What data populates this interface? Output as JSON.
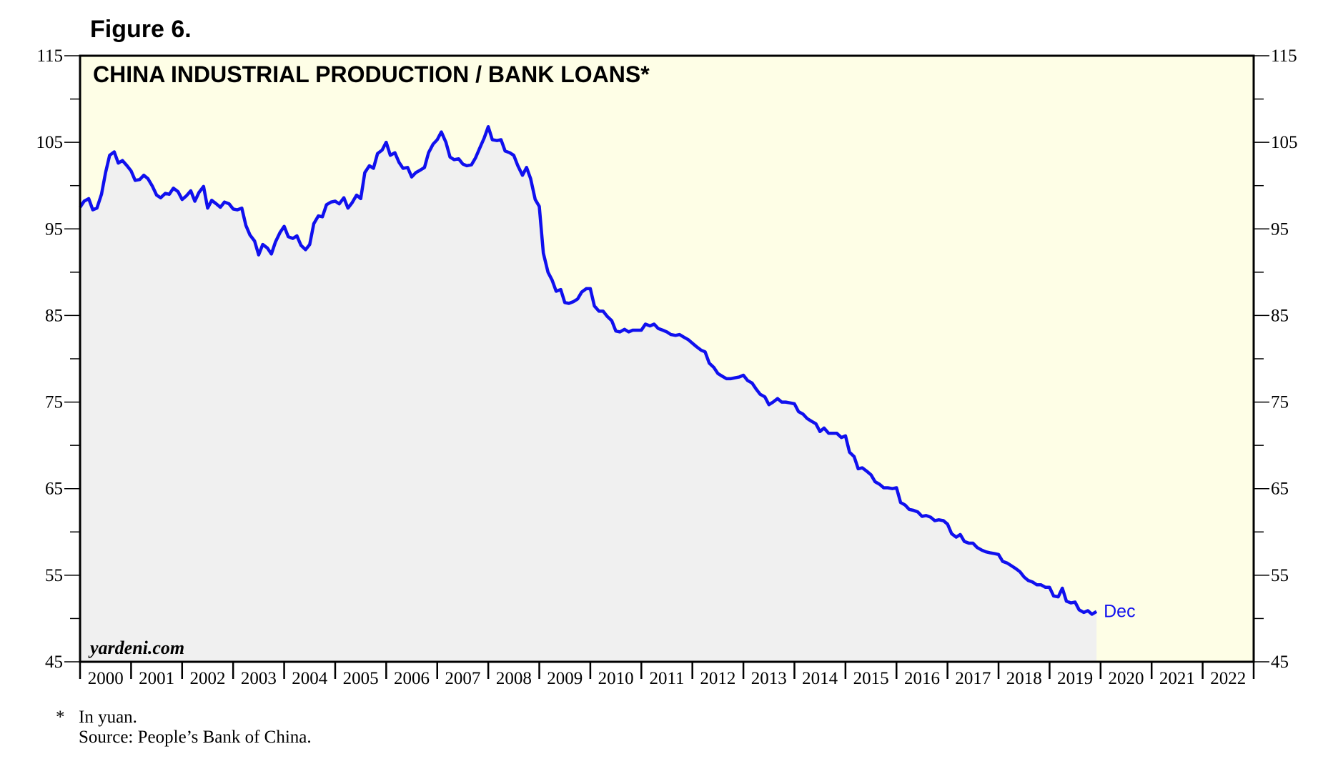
{
  "figure_label": "Figure 6.",
  "footnote": {
    "marker": "*",
    "note": "In yuan.",
    "source": "Source: People’s Bank of China."
  },
  "watermark": "yardeni.com",
  "colors": {
    "plot_bg": "#fefee6",
    "area_fill": "#f0f0f0",
    "line": "#1010ee",
    "axis": "#000000"
  },
  "chart_data": {
    "type": "line",
    "title": "CHINA INDUSTRIAL PRODUCTION / BANK LOANS*",
    "xlabel": "",
    "ylabel": "",
    "ylim": [
      45,
      115
    ],
    "y_ticks": [
      45,
      55,
      65,
      75,
      85,
      95,
      105,
      115
    ],
    "x_categories": [
      "2000",
      "2001",
      "2002",
      "2003",
      "2004",
      "2005",
      "2006",
      "2007",
      "2008",
      "2009",
      "2010",
      "2011",
      "2012",
      "2013",
      "2014",
      "2015",
      "2016",
      "2017",
      "2018",
      "2019",
      "2020",
      "2021",
      "2022"
    ],
    "xlim": [
      2000,
      2023
    ],
    "grid": false,
    "end_label": "Dec",
    "series": [
      {
        "values": [
          [
            2000.0,
            97.5
          ],
          [
            2000.08,
            98.2
          ],
          [
            2000.17,
            98.5
          ],
          [
            2000.25,
            97.2
          ],
          [
            2000.33,
            97.4
          ],
          [
            2000.42,
            99.0
          ],
          [
            2000.5,
            101.5
          ],
          [
            2000.58,
            103.5
          ],
          [
            2000.67,
            103.9
          ],
          [
            2000.75,
            102.6
          ],
          [
            2000.83,
            102.9
          ],
          [
            2000.92,
            102.3
          ],
          [
            2001.0,
            101.7
          ],
          [
            2001.08,
            100.6
          ],
          [
            2001.17,
            100.7
          ],
          [
            2001.25,
            101.2
          ],
          [
            2001.33,
            100.8
          ],
          [
            2001.42,
            99.9
          ],
          [
            2001.5,
            98.9
          ],
          [
            2001.58,
            98.6
          ],
          [
            2001.67,
            99.1
          ],
          [
            2001.75,
            99.0
          ],
          [
            2001.83,
            99.7
          ],
          [
            2001.92,
            99.3
          ],
          [
            2002.0,
            98.4
          ],
          [
            2002.08,
            98.8
          ],
          [
            2002.17,
            99.4
          ],
          [
            2002.25,
            98.2
          ],
          [
            2002.33,
            99.2
          ],
          [
            2002.42,
            99.9
          ],
          [
            2002.5,
            97.4
          ],
          [
            2002.58,
            98.3
          ],
          [
            2002.67,
            97.9
          ],
          [
            2002.75,
            97.5
          ],
          [
            2002.83,
            98.1
          ],
          [
            2002.92,
            97.9
          ],
          [
            2003.0,
            97.3
          ],
          [
            2003.08,
            97.2
          ],
          [
            2003.17,
            97.4
          ],
          [
            2003.25,
            95.4
          ],
          [
            2003.33,
            94.3
          ],
          [
            2003.42,
            93.6
          ],
          [
            2003.5,
            92.0
          ],
          [
            2003.58,
            93.2
          ],
          [
            2003.67,
            92.8
          ],
          [
            2003.75,
            92.1
          ],
          [
            2003.83,
            93.5
          ],
          [
            2003.92,
            94.6
          ],
          [
            2004.0,
            95.3
          ],
          [
            2004.08,
            94.1
          ],
          [
            2004.17,
            93.9
          ],
          [
            2004.25,
            94.2
          ],
          [
            2004.33,
            93.1
          ],
          [
            2004.42,
            92.6
          ],
          [
            2004.5,
            93.2
          ],
          [
            2004.58,
            95.6
          ],
          [
            2004.67,
            96.5
          ],
          [
            2004.75,
            96.4
          ],
          [
            2004.83,
            97.8
          ],
          [
            2004.92,
            98.1
          ],
          [
            2005.0,
            98.2
          ],
          [
            2005.08,
            97.9
          ],
          [
            2005.17,
            98.6
          ],
          [
            2005.25,
            97.4
          ],
          [
            2005.33,
            98.0
          ],
          [
            2005.42,
            98.9
          ],
          [
            2005.5,
            98.5
          ],
          [
            2005.58,
            101.5
          ],
          [
            2005.67,
            102.3
          ],
          [
            2005.75,
            102.0
          ],
          [
            2005.83,
            103.7
          ],
          [
            2005.92,
            104.1
          ],
          [
            2006.0,
            105.0
          ],
          [
            2006.08,
            103.5
          ],
          [
            2006.17,
            103.8
          ],
          [
            2006.25,
            102.7
          ],
          [
            2006.33,
            102.0
          ],
          [
            2006.42,
            102.1
          ],
          [
            2006.5,
            101.0
          ],
          [
            2006.58,
            101.5
          ],
          [
            2006.67,
            101.8
          ],
          [
            2006.75,
            102.1
          ],
          [
            2006.83,
            103.8
          ],
          [
            2006.92,
            104.8
          ],
          [
            2007.0,
            105.3
          ],
          [
            2007.08,
            106.2
          ],
          [
            2007.17,
            105.0
          ],
          [
            2007.25,
            103.3
          ],
          [
            2007.33,
            103.0
          ],
          [
            2007.42,
            103.1
          ],
          [
            2007.5,
            102.5
          ],
          [
            2007.58,
            102.3
          ],
          [
            2007.67,
            102.4
          ],
          [
            2007.75,
            103.2
          ],
          [
            2007.83,
            104.3
          ],
          [
            2007.92,
            105.5
          ],
          [
            2008.0,
            106.8
          ],
          [
            2008.08,
            105.3
          ],
          [
            2008.17,
            105.2
          ],
          [
            2008.25,
            105.3
          ],
          [
            2008.33,
            104.0
          ],
          [
            2008.42,
            103.8
          ],
          [
            2008.5,
            103.5
          ],
          [
            2008.58,
            102.3
          ],
          [
            2008.67,
            101.2
          ],
          [
            2008.75,
            102.1
          ],
          [
            2008.83,
            100.8
          ],
          [
            2008.92,
            98.4
          ],
          [
            2009.0,
            97.6
          ],
          [
            2009.08,
            92.2
          ],
          [
            2009.17,
            90.0
          ],
          [
            2009.25,
            89.1
          ],
          [
            2009.33,
            87.8
          ],
          [
            2009.42,
            88.0
          ],
          [
            2009.5,
            86.5
          ],
          [
            2009.58,
            86.4
          ],
          [
            2009.67,
            86.6
          ],
          [
            2009.75,
            86.9
          ],
          [
            2009.83,
            87.7
          ],
          [
            2009.92,
            88.1
          ],
          [
            2010.0,
            88.1
          ],
          [
            2010.08,
            86.1
          ],
          [
            2010.17,
            85.5
          ],
          [
            2010.25,
            85.5
          ],
          [
            2010.33,
            84.9
          ],
          [
            2010.42,
            84.4
          ],
          [
            2010.5,
            83.2
          ],
          [
            2010.58,
            83.1
          ],
          [
            2010.67,
            83.4
          ],
          [
            2010.75,
            83.1
          ],
          [
            2010.83,
            83.3
          ],
          [
            2010.92,
            83.3
          ],
          [
            2011.0,
            83.3
          ],
          [
            2011.08,
            84.0
          ],
          [
            2011.17,
            83.8
          ],
          [
            2011.25,
            84.0
          ],
          [
            2011.33,
            83.5
          ],
          [
            2011.42,
            83.3
          ],
          [
            2011.5,
            83.1
          ],
          [
            2011.58,
            82.8
          ],
          [
            2011.67,
            82.7
          ],
          [
            2011.75,
            82.8
          ],
          [
            2011.83,
            82.5
          ],
          [
            2011.92,
            82.2
          ],
          [
            2012.0,
            81.8
          ],
          [
            2012.08,
            81.4
          ],
          [
            2012.17,
            81.0
          ],
          [
            2012.25,
            80.8
          ],
          [
            2012.33,
            79.5
          ],
          [
            2012.42,
            79.0
          ],
          [
            2012.5,
            78.3
          ],
          [
            2012.58,
            78.0
          ],
          [
            2012.67,
            77.7
          ],
          [
            2012.75,
            77.7
          ],
          [
            2012.83,
            77.8
          ],
          [
            2012.92,
            77.9
          ],
          [
            2013.0,
            78.1
          ],
          [
            2013.08,
            77.5
          ],
          [
            2013.17,
            77.2
          ],
          [
            2013.25,
            76.5
          ],
          [
            2013.33,
            75.9
          ],
          [
            2013.42,
            75.6
          ],
          [
            2013.5,
            74.7
          ],
          [
            2013.58,
            75.0
          ],
          [
            2013.67,
            75.4
          ],
          [
            2013.75,
            75.0
          ],
          [
            2013.83,
            75.0
          ],
          [
            2013.92,
            74.9
          ],
          [
            2014.0,
            74.8
          ],
          [
            2014.08,
            73.9
          ],
          [
            2014.17,
            73.6
          ],
          [
            2014.25,
            73.1
          ],
          [
            2014.33,
            72.8
          ],
          [
            2014.42,
            72.5
          ],
          [
            2014.5,
            71.6
          ],
          [
            2014.58,
            72.0
          ],
          [
            2014.67,
            71.4
          ],
          [
            2014.75,
            71.4
          ],
          [
            2014.83,
            71.4
          ],
          [
            2014.92,
            70.9
          ],
          [
            2015.0,
            71.1
          ],
          [
            2015.08,
            69.2
          ],
          [
            2015.17,
            68.7
          ],
          [
            2015.25,
            67.3
          ],
          [
            2015.33,
            67.4
          ],
          [
            2015.42,
            67.0
          ],
          [
            2015.5,
            66.6
          ],
          [
            2015.58,
            65.8
          ],
          [
            2015.67,
            65.5
          ],
          [
            2015.75,
            65.1
          ],
          [
            2015.83,
            65.1
          ],
          [
            2015.92,
            65.0
          ],
          [
            2016.0,
            65.1
          ],
          [
            2016.08,
            63.4
          ],
          [
            2016.17,
            63.1
          ],
          [
            2016.25,
            62.6
          ],
          [
            2016.33,
            62.5
          ],
          [
            2016.42,
            62.3
          ],
          [
            2016.5,
            61.8
          ],
          [
            2016.58,
            61.9
          ],
          [
            2016.67,
            61.7
          ],
          [
            2016.75,
            61.3
          ],
          [
            2016.83,
            61.4
          ],
          [
            2016.92,
            61.3
          ],
          [
            2017.0,
            60.9
          ],
          [
            2017.08,
            59.8
          ],
          [
            2017.17,
            59.4
          ],
          [
            2017.25,
            59.7
          ],
          [
            2017.33,
            58.9
          ],
          [
            2017.42,
            58.7
          ],
          [
            2017.5,
            58.7
          ],
          [
            2017.58,
            58.2
          ],
          [
            2017.67,
            57.9
          ],
          [
            2017.75,
            57.7
          ],
          [
            2017.83,
            57.6
          ],
          [
            2017.92,
            57.5
          ],
          [
            2018.0,
            57.4
          ],
          [
            2018.08,
            56.6
          ],
          [
            2018.17,
            56.4
          ],
          [
            2018.25,
            56.1
          ],
          [
            2018.33,
            55.8
          ],
          [
            2018.42,
            55.4
          ],
          [
            2018.5,
            54.8
          ],
          [
            2018.58,
            54.4
          ],
          [
            2018.67,
            54.2
          ],
          [
            2018.75,
            53.9
          ],
          [
            2018.83,
            53.9
          ],
          [
            2018.92,
            53.6
          ],
          [
            2019.0,
            53.6
          ],
          [
            2019.08,
            52.6
          ],
          [
            2019.17,
            52.5
          ],
          [
            2019.25,
            53.5
          ],
          [
            2019.33,
            52.0
          ],
          [
            2019.42,
            51.8
          ],
          [
            2019.5,
            51.9
          ],
          [
            2019.58,
            51.0
          ],
          [
            2019.67,
            50.7
          ],
          [
            2019.75,
            50.9
          ],
          [
            2019.83,
            50.5
          ],
          [
            2019.92,
            50.8
          ]
        ]
      }
    ]
  }
}
